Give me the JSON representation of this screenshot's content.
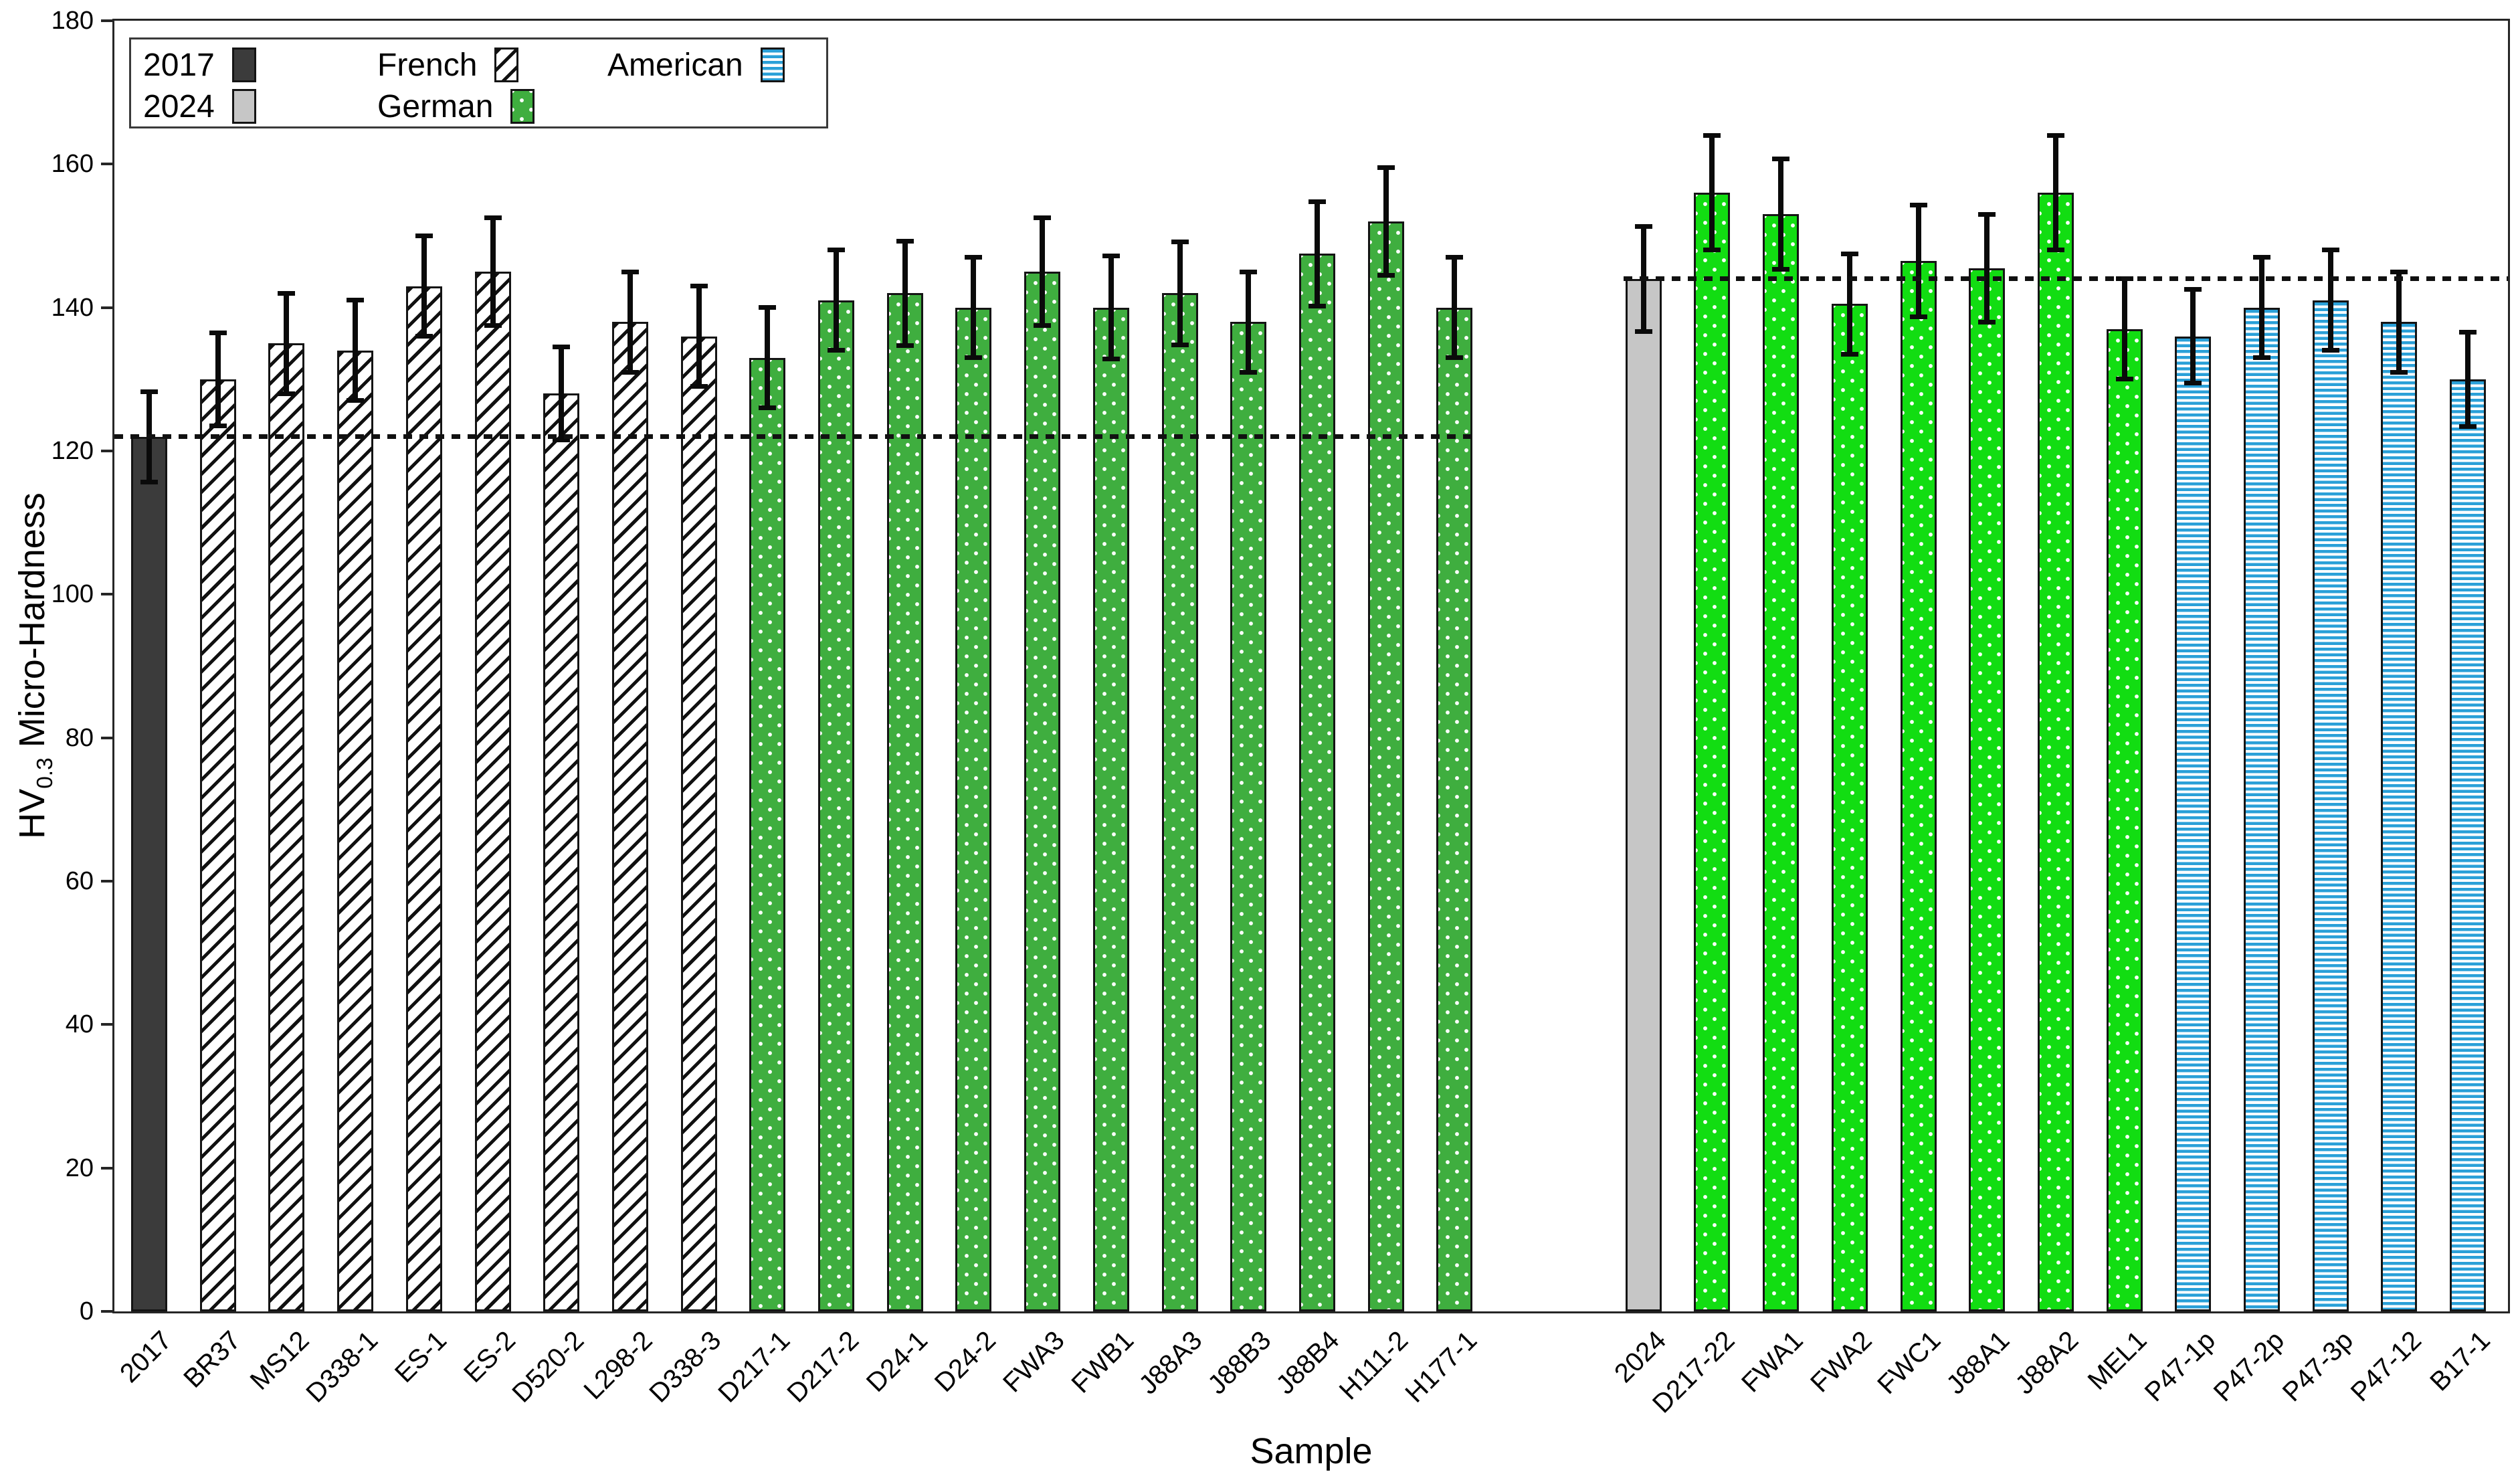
{
  "axes": {
    "x_label": "Sample",
    "y_label_prefix": "HV",
    "y_label_sub": "0.3",
    "y_label_suffix": " Micro-Hardness",
    "y_min": 0,
    "y_max": 180,
    "y_ticks": [
      0,
      20,
      40,
      60,
      80,
      100,
      120,
      140,
      160,
      180
    ]
  },
  "legend": {
    "entries": [
      {
        "label": "2017",
        "style": "dark2017"
      },
      {
        "label": "2024",
        "style": "gray2024"
      },
      {
        "label": "French",
        "style": "french"
      },
      {
        "label": "German",
        "style": "german"
      },
      {
        "label": "American",
        "style": "american"
      }
    ]
  },
  "colors": {
    "bar_2017": "#3b3b3b",
    "bar_2024": "#c6c6c6",
    "german_green": "#3fae3f",
    "german_bright_green": "#12dd12",
    "american_blue": "#2aa0d8",
    "hatch_black": "#101010",
    "error_bar": "#0a0a0a",
    "frame": "#262626"
  },
  "reference_lines": [
    {
      "value": 122,
      "region": "left-group"
    },
    {
      "value": 144,
      "region": "right-group"
    }
  ],
  "chart_data": {
    "type": "bar",
    "title": "",
    "xlabel": "Sample",
    "ylabel": "HV0.3 Micro-Hardness",
    "ylim": [
      0,
      180
    ],
    "grid": false,
    "legend_position": "upper-left",
    "group_gap_after_index": 19,
    "bars": [
      {
        "label": "2017",
        "value": 122,
        "error": 6.3,
        "style": "dark2017"
      },
      {
        "label": "BR37",
        "value": 130,
        "error": 6.5,
        "style": "french"
      },
      {
        "label": "MS12",
        "value": 135,
        "error": 7,
        "style": "french"
      },
      {
        "label": "D338-1",
        "value": 134,
        "error": 7,
        "style": "french"
      },
      {
        "label": "ES-1",
        "value": 143,
        "error": 7,
        "style": "french"
      },
      {
        "label": "ES-2",
        "value": 145,
        "error": 7.5,
        "style": "french"
      },
      {
        "label": "D520-2",
        "value": 128,
        "error": 6.5,
        "style": "french"
      },
      {
        "label": "L298-2",
        "value": 138,
        "error": 7,
        "style": "french"
      },
      {
        "label": "D338-3",
        "value": 136,
        "error": 7,
        "style": "french"
      },
      {
        "label": "D217-1",
        "value": 133,
        "error": 7,
        "style": "german"
      },
      {
        "label": "D217-2",
        "value": 141,
        "error": 7,
        "style": "german"
      },
      {
        "label": "D24-1",
        "value": 142,
        "error": 7.3,
        "style": "german"
      },
      {
        "label": "D24-2",
        "value": 140,
        "error": 7,
        "style": "german"
      },
      {
        "label": "FWA3",
        "value": 145,
        "error": 7.5,
        "style": "german"
      },
      {
        "label": "FWB1",
        "value": 140,
        "error": 7.2,
        "style": "german"
      },
      {
        "label": "J88A3",
        "value": 142,
        "error": 7.2,
        "style": "german"
      },
      {
        "label": "J88B3",
        "value": 138,
        "error": 7,
        "style": "german"
      },
      {
        "label": "J88B4",
        "value": 147.5,
        "error": 7.3,
        "style": "german"
      },
      {
        "label": "H111-2",
        "value": 152,
        "error": 7.5,
        "style": "german"
      },
      {
        "label": "H177-1",
        "value": 140,
        "error": 7,
        "style": "german"
      },
      {
        "label": "2024",
        "value": 144,
        "error": 7.3,
        "style": "gray2024"
      },
      {
        "label": "D217-22",
        "value": 156,
        "error": 8,
        "style": "german_bright"
      },
      {
        "label": "FWA1",
        "value": 153,
        "error": 7.7,
        "style": "german_bright"
      },
      {
        "label": "FWA2",
        "value": 140.5,
        "error": 7,
        "style": "german_bright"
      },
      {
        "label": "FWC1",
        "value": 146.5,
        "error": 7.8,
        "style": "german_bright"
      },
      {
        "label": "J88A1",
        "value": 145.5,
        "error": 7.5,
        "style": "german_bright"
      },
      {
        "label": "J88A2",
        "value": 156,
        "error": 8,
        "style": "german_bright"
      },
      {
        "label": "MEL1",
        "value": 137,
        "error": 7,
        "style": "german_bright"
      },
      {
        "label": "P47-1p",
        "value": 136,
        "error": 6.5,
        "style": "american"
      },
      {
        "label": "P47-2p",
        "value": 140,
        "error": 7,
        "style": "american"
      },
      {
        "label": "P47-3p",
        "value": 141,
        "error": 7,
        "style": "american"
      },
      {
        "label": "P47-12",
        "value": 138,
        "error": 7,
        "style": "american"
      },
      {
        "label": "B17-1",
        "value": 130,
        "error": 6.6,
        "style": "american"
      }
    ]
  }
}
